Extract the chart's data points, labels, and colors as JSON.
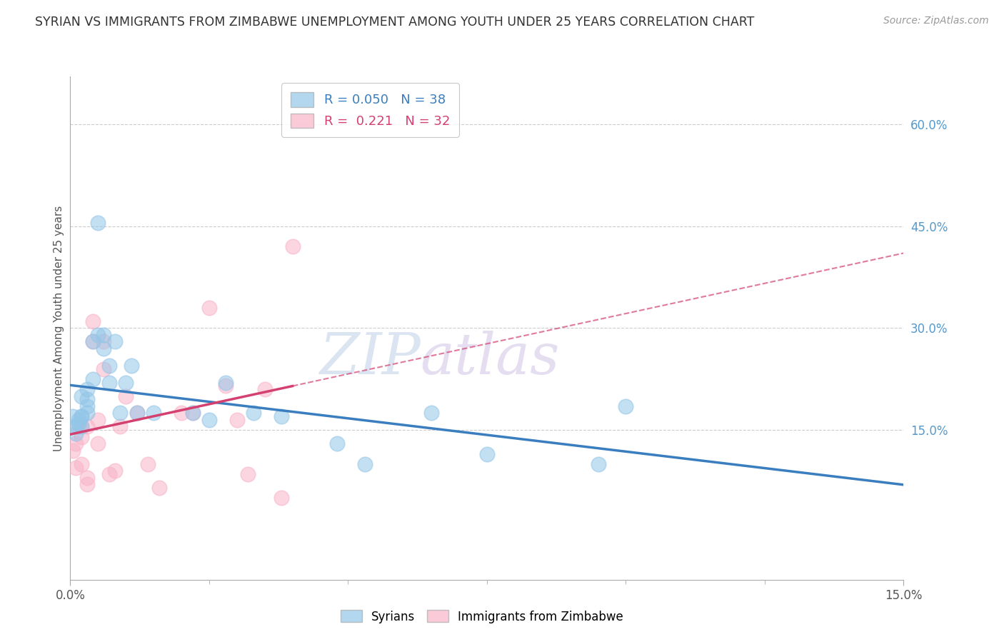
{
  "title": "SYRIAN VS IMMIGRANTS FROM ZIMBABWE UNEMPLOYMENT AMONG YOUTH UNDER 25 YEARS CORRELATION CHART",
  "source": "Source: ZipAtlas.com",
  "ylabel": "Unemployment Among Youth under 25 years",
  "x_min": 0.0,
  "x_max": 0.15,
  "y_min": -0.07,
  "y_max": 0.67,
  "syrians_r": 0.05,
  "syrians_n": 38,
  "zimbabwe_r": 0.221,
  "zimbabwe_n": 32,
  "legend_labels": [
    "Syrians",
    "Immigrants from Zimbabwe"
  ],
  "blue_color": "#93c6e8",
  "pink_color": "#f8b4c8",
  "blue_line_color": "#3a7ebf",
  "pink_line_color": "#d44070",
  "grid_color": "#cccccc",
  "title_color": "#333333",
  "right_label_color": "#5599cc",
  "watermark_zip": "ZIP",
  "watermark_atlas": "atlas",
  "syrians_x": [
    0.0005,
    0.001,
    0.001,
    0.0015,
    0.0015,
    0.002,
    0.002,
    0.002,
    0.002,
    0.003,
    0.003,
    0.003,
    0.003,
    0.004,
    0.004,
    0.005,
    0.005,
    0.006,
    0.006,
    0.007,
    0.007,
    0.008,
    0.009,
    0.01,
    0.011,
    0.012,
    0.015,
    0.022,
    0.025,
    0.028,
    0.033,
    0.038,
    0.048,
    0.053,
    0.065,
    0.075,
    0.095,
    0.1
  ],
  "syrians_y": [
    0.17,
    0.155,
    0.145,
    0.16,
    0.165,
    0.17,
    0.155,
    0.17,
    0.2,
    0.185,
    0.175,
    0.195,
    0.21,
    0.225,
    0.28,
    0.29,
    0.455,
    0.29,
    0.27,
    0.245,
    0.22,
    0.28,
    0.175,
    0.22,
    0.245,
    0.175,
    0.175,
    0.175,
    0.165,
    0.22,
    0.175,
    0.17,
    0.13,
    0.1,
    0.175,
    0.115,
    0.1,
    0.185
  ],
  "zimbabwe_x": [
    0.0005,
    0.001,
    0.001,
    0.0015,
    0.002,
    0.002,
    0.002,
    0.003,
    0.003,
    0.003,
    0.004,
    0.004,
    0.005,
    0.005,
    0.006,
    0.006,
    0.007,
    0.008,
    0.009,
    0.01,
    0.012,
    0.014,
    0.016,
    0.02,
    0.022,
    0.025,
    0.028,
    0.03,
    0.032,
    0.035,
    0.038,
    0.04
  ],
  "zimbabwe_y": [
    0.12,
    0.13,
    0.095,
    0.155,
    0.155,
    0.14,
    0.1,
    0.08,
    0.07,
    0.155,
    0.31,
    0.28,
    0.165,
    0.13,
    0.28,
    0.24,
    0.085,
    0.09,
    0.155,
    0.2,
    0.175,
    0.1,
    0.065,
    0.175,
    0.175,
    0.33,
    0.215,
    0.165,
    0.085,
    0.21,
    0.05,
    0.42
  ]
}
